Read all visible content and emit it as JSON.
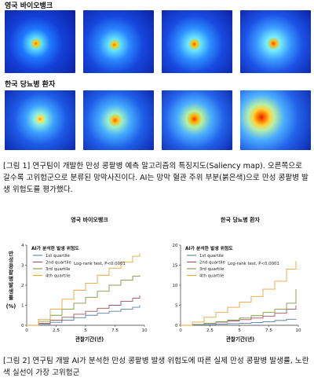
{
  "figure1": {
    "group_uk_label": "영국 바이오뱅크",
    "group_kr_label": "한국 당뇨병 환자",
    "caption": "[그림 1] 연구팀이 개발한 만성 콩팥병 예측 알고리즘의 특징지도(Saliency map). 오른쪽으로 갈수록 고위험군으로 분류된 망막사진이다. AI는 망막 혈관 주위 부분(붉은색)으로 만성 콩팥병 발생 위험도를 평가했다."
  },
  "figure2": {
    "caption": "[그림 2] 연구팀 개발 AI가 분석한 만성 콩팥병 발생 위험도에 따른 실제 만성 콩팥병 발생률, 노란색 실선이 가장 고위험군"
  },
  "chart_data": [
    {
      "type": "line",
      "title": "영국 바이오뱅크",
      "xlabel": "관찰기간(년)",
      "ylabel": "만성 콩팥병 발생률 (%)",
      "xlim": [
        0,
        10
      ],
      "ylim": [
        0,
        4
      ],
      "xticks": [
        "0",
        "2.5",
        "5",
        "7.5",
        "10"
      ],
      "yticks": [
        "0",
        "1",
        "2",
        "3",
        "4"
      ],
      "legend_title": "AI가 분석한 발생 위험도",
      "legend_position": "top-left",
      "annotation": "Log-rank test, P<0.0001",
      "series": [
        {
          "name": "1st quartile",
          "color": "#5b7fa6",
          "x": [
            0,
            1,
            2,
            3,
            4,
            5,
            6,
            7,
            8,
            9,
            9.6
          ],
          "y": [
            0,
            0.05,
            0.15,
            0.25,
            0.38,
            0.5,
            0.6,
            0.7,
            0.8,
            0.9,
            1.0
          ]
        },
        {
          "name": "2nd quartile",
          "color": "#a0505c",
          "x": [
            0,
            1,
            2,
            3,
            4,
            5,
            6,
            7,
            8,
            9,
            9.6
          ],
          "y": [
            0,
            0.1,
            0.25,
            0.4,
            0.55,
            0.7,
            0.85,
            1.0,
            1.2,
            1.35,
            1.5
          ]
        },
        {
          "name": "3rd quartile",
          "color": "#7f9a4b",
          "x": [
            0,
            1,
            2,
            3,
            4,
            5,
            6,
            7,
            8,
            9,
            9.6
          ],
          "y": [
            0,
            0.2,
            0.5,
            0.8,
            1.1,
            1.4,
            1.7,
            2.0,
            2.25,
            2.45,
            2.5
          ]
        },
        {
          "name": "4th quartile",
          "color": "#e8a33c",
          "x": [
            0,
            1,
            2,
            3,
            4,
            5,
            6,
            7,
            8,
            9,
            9.6
          ],
          "y": [
            0,
            0.3,
            0.8,
            1.3,
            1.75,
            2.1,
            2.5,
            2.85,
            3.15,
            3.45,
            3.6
          ]
        }
      ]
    },
    {
      "type": "line",
      "title": "한국 당뇨병 환자",
      "xlabel": "관찰기간(년)",
      "ylabel": "",
      "xlim": [
        0,
        10
      ],
      "ylim": [
        0,
        20
      ],
      "xticks": [
        "0",
        "2.5",
        "5",
        "7.5",
        "10"
      ],
      "yticks": [
        "0",
        "5",
        "10",
        "15",
        "20"
      ],
      "legend_title": "AI가 분석한 발생 위험도",
      "legend_position": "top-left",
      "annotation": "Log-rank test, P<0.0001",
      "series": [
        {
          "name": "1st quartile",
          "color": "#5b7fa6",
          "x": [
            0,
            1,
            2,
            3,
            4,
            5,
            6,
            7,
            8,
            9,
            9.8
          ],
          "y": [
            0,
            0.1,
            0.2,
            0.3,
            0.4,
            0.5,
            0.7,
            0.9,
            1.2,
            1.5,
            1.6
          ]
        },
        {
          "name": "2nd quartile",
          "color": "#a0505c",
          "x": [
            0,
            1,
            2,
            3,
            4,
            5,
            6,
            7,
            8,
            9,
            9.8
          ],
          "y": [
            0,
            0.2,
            0.5,
            0.8,
            1.1,
            1.4,
            1.8,
            2.3,
            3.0,
            4.0,
            5.0
          ]
        },
        {
          "name": "3rd quartile",
          "color": "#7f9a4b",
          "x": [
            0,
            1,
            2,
            3,
            4,
            5,
            6,
            7,
            8,
            9,
            9.8
          ],
          "y": [
            0,
            0.2,
            0.5,
            0.9,
            1.3,
            1.8,
            2.4,
            3.2,
            4.0,
            5.5,
            9.0
          ]
        },
        {
          "name": "4th quartile",
          "color": "#e8a33c",
          "x": [
            0,
            1,
            2,
            3,
            4,
            5,
            6,
            7,
            8,
            9,
            9.8
          ],
          "y": [
            0,
            0.8,
            2.0,
            3.2,
            4.5,
            5.8,
            7.2,
            9.0,
            11.0,
            14.0,
            16.0
          ]
        }
      ]
    }
  ]
}
